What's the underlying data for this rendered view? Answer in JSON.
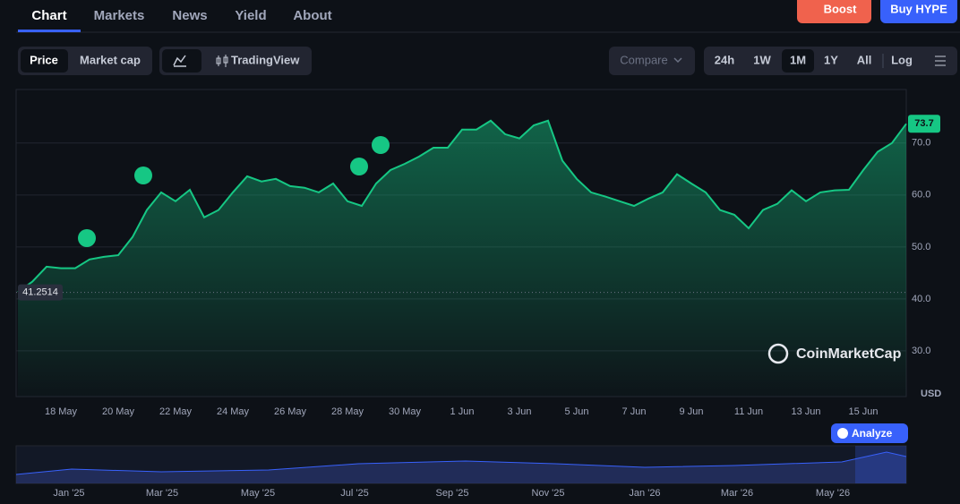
{
  "header": {
    "tabs": [
      "Chart",
      "Markets",
      "News",
      "Yield",
      "About"
    ],
    "buttons": [
      "Boost",
      "Buy HYPE"
    ]
  },
  "toolbar": {
    "modes": [
      "Price",
      "Market cap"
    ],
    "view": "TradingView",
    "compare": "Compare",
    "ranges": [
      "24h",
      "1W",
      "1M",
      "1Y",
      "All"
    ],
    "log": "Log"
  },
  "chart_data": {
    "type": "line",
    "color": "#16c784",
    "grid": true,
    "y_unit_label": "USD",
    "watermark": "CoinMarketCap",
    "categories": [
      null,
      null,
      null,
      "18 May",
      null,
      null,
      null,
      "20 May",
      null,
      null,
      null,
      "22 May",
      null,
      null,
      null,
      "24 May",
      null,
      null,
      null,
      "26 May",
      null,
      null,
      null,
      "28 May",
      null,
      null,
      null,
      "30 May",
      null,
      null,
      null,
      "1 Jun",
      null,
      null,
      null,
      "3 Jun",
      null,
      null,
      null,
      "5 Jun",
      null,
      null,
      null,
      "7 Jun",
      null,
      null,
      null,
      "9 Jun",
      null,
      null,
      null,
      "11 Jun",
      null,
      null,
      null,
      "13 Jun",
      null,
      null,
      null,
      "15 Jun",
      null,
      null,
      null
    ],
    "values": [
      41.3,
      43.3,
      46.2,
      45.9,
      45.9,
      47.6,
      48.1,
      48.4,
      51.9,
      57.1,
      60.5,
      58.8,
      61.0,
      55.7,
      57.1,
      60.5,
      63.6,
      62.6,
      63.1,
      61.7,
      61.4,
      60.5,
      62.2,
      58.8,
      57.9,
      62.2,
      64.8,
      66.0,
      67.4,
      69.1,
      69.1,
      72.6,
      72.6,
      74.3,
      71.7,
      70.9,
      73.4,
      74.3,
      66.6,
      63.1,
      60.5,
      59.7,
      58.8,
      57.9,
      59.3,
      60.5,
      64.0,
      62.2,
      60.5,
      57.1,
      56.2,
      53.6,
      57.1,
      58.3,
      60.9,
      58.8,
      60.5,
      60.9,
      61.0,
      64.8,
      68.3,
      70.0,
      73.7
    ],
    "ylim": [
      21.2,
      80.3
    ],
    "yticks": [
      {
        "value": 30,
        "label": "30.0"
      },
      {
        "value": 40,
        "label": "40.0"
      },
      {
        "value": 50,
        "label": "50.0"
      },
      {
        "value": 60,
        "label": "60.0"
      },
      {
        "value": 70,
        "label": "70.0"
      }
    ],
    "open_price": 41.2514,
    "last_price": 73.7
  },
  "navigator": {
    "labels": [
      "Jan '25",
      "Mar '25",
      "May '25",
      "Jul '25",
      "Sep '25",
      "Nov '25",
      "Jan '26",
      "Mar '26",
      "May '26"
    ],
    "button": "Analyze"
  }
}
